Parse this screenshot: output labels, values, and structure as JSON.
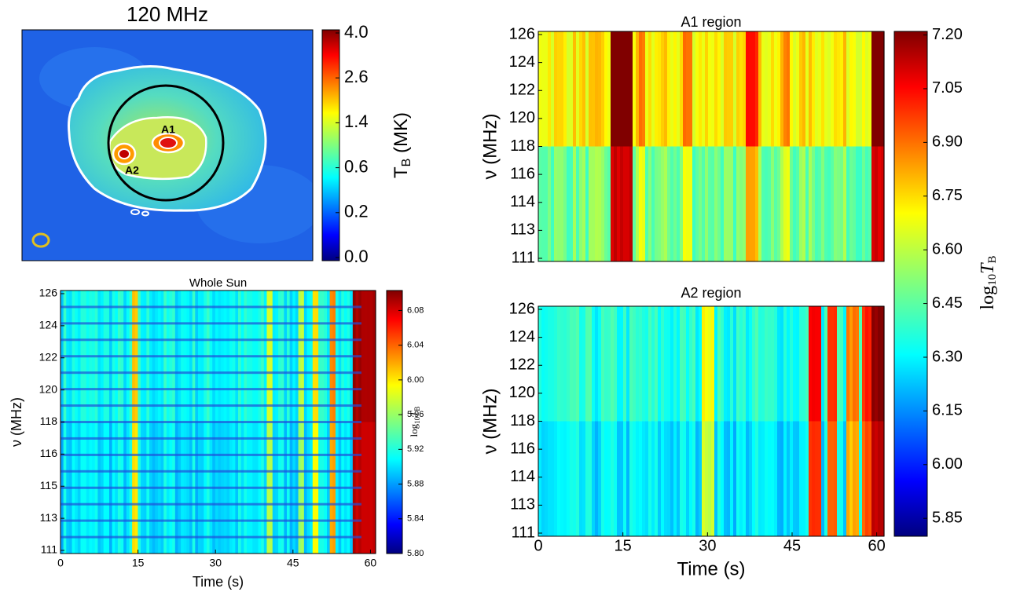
{
  "chart_data": [
    {
      "type": "image",
      "title": "120 MHz",
      "annotations": [
        "A1",
        "A2"
      ],
      "colorbar_ticks": [
        {
          "value": 0,
          "label": "0.0"
        },
        0.2,
        0.6,
        1.4,
        2.6,
        {
          "value": 4,
          "label": "4.0"
        }
      ],
      "colorbar_label": {
        "symbol": "T",
        "subscript": "B",
        "unit": "(MK)"
      }
    },
    {
      "type": "heatmap",
      "title": "Whole Sun",
      "xlabel": "Time (s)",
      "ylabel": "ν (MHz)",
      "xlim": [
        0,
        61
      ],
      "xticks": [
        0,
        15,
        30,
        45,
        60
      ],
      "yticks": [
        111,
        113,
        115,
        116,
        118,
        120,
        122,
        124,
        126
      ],
      "colorbar_lim": [
        5.8,
        6.103
      ],
      "colorbar_ticks": [
        {
          "value": 5.8,
          "label": "5.80"
        },
        5.84,
        5.88,
        5.92,
        5.96,
        {
          "value": 6,
          "label": "6.00"
        },
        6.04,
        6.08
      ],
      "colorbar_label": {
        "prefix": "log",
        "prefix_sub": "10",
        "symbol": "T",
        "subscript": "B"
      }
    },
    {
      "type": "heatmap",
      "title": "A1 region",
      "ylabel": "ν (MHz)",
      "xlim": [
        0,
        61.3
      ],
      "yticks": [
        111,
        113,
        114,
        116,
        118,
        120,
        122,
        124,
        126
      ],
      "colorbar_lim": [
        5.8,
        7.21
      ],
      "colorbar_ticks": [
        5.85,
        {
          "value": 6,
          "label": "6.00"
        },
        6.15,
        {
          "value": 6.3,
          "label": "6.30"
        },
        6.45,
        {
          "value": 6.6,
          "label": "6.60"
        },
        6.75,
        {
          "value": 6.9,
          "label": "6.90"
        },
        7.05,
        {
          "value": 7.2,
          "label": "7.20"
        }
      ],
      "colorbar_label": {
        "prefix": "log",
        "prefix_sub": "10",
        "symbol": "T",
        "subscript": "B"
      }
    },
    {
      "type": "heatmap",
      "title": "A2 region",
      "xlabel": "Time (s)",
      "ylabel": "ν (MHz)",
      "xlim": [
        0,
        61.3
      ],
      "xticks": [
        0,
        15,
        30,
        45,
        60
      ],
      "yticks": [
        111,
        113,
        114,
        116,
        118,
        120,
        122,
        124,
        126
      ]
    }
  ]
}
